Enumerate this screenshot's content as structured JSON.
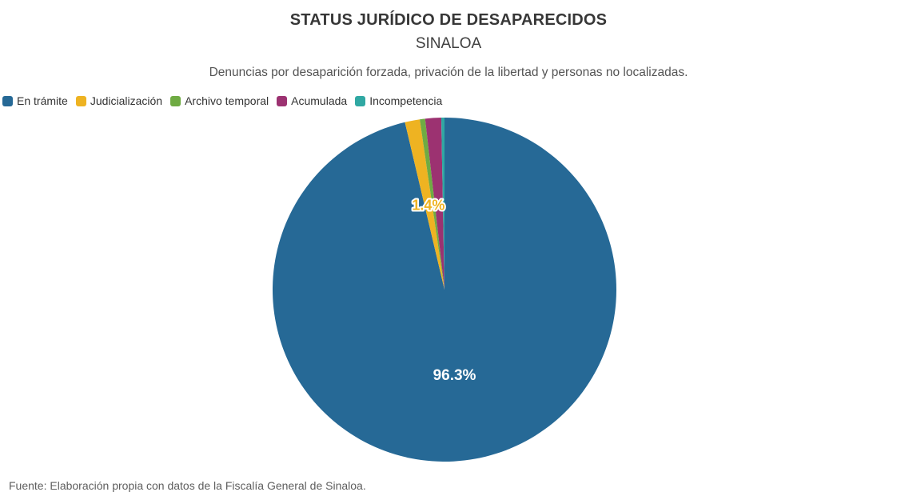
{
  "chart_data": {
    "type": "pie",
    "title": "STATUS JURÍDICO DE DESAPARECIDOS",
    "subtitle": "SINALOA",
    "description": "Denuncias por desaparición forzada, privación de la libertad y personas no localizadas.",
    "source": "Fuente: Elaboración propia con datos de la Fiscalía General de Sinaloa.",
    "legend_position": "top-left",
    "start_angle_deg": 0,
    "direction": "clockwise",
    "background_color": "#ffffff",
    "slices": [
      {
        "label": "En trámite",
        "value": 96.3,
        "color": "#266996",
        "data_label": "96.3%",
        "data_label_color": "#ffffff",
        "data_label_stroke": "none"
      },
      {
        "label": "Judicialización",
        "value": 1.4,
        "color": "#eeb322",
        "data_label": "1.4%",
        "data_label_color": "#eeb322",
        "data_label_stroke": "#ffffff"
      },
      {
        "label": "Archivo temporal",
        "value": 0.5,
        "color": "#6fab43",
        "data_label": null
      },
      {
        "label": "Acumulada",
        "value": 1.5,
        "color": "#9c3271",
        "data_label": null
      },
      {
        "label": "Incompetencia",
        "value": 0.3,
        "color": "#30a8a3",
        "data_label": null
      }
    ]
  }
}
